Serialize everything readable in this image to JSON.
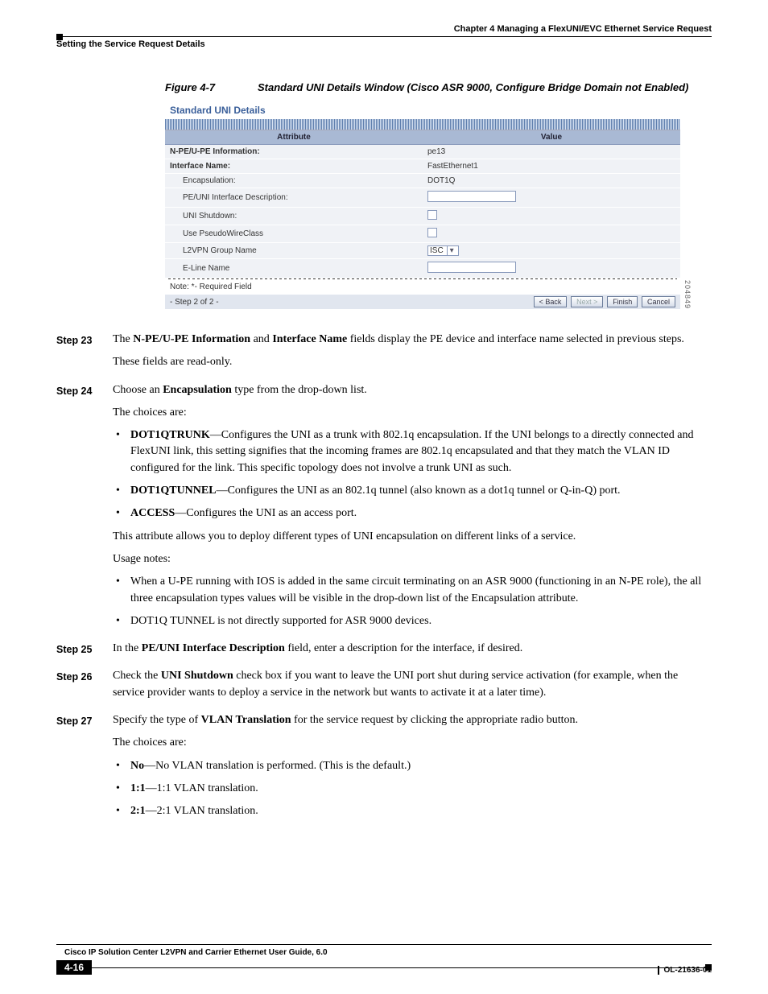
{
  "header": {
    "left": "Setting the Service Request Details",
    "right": "Chapter 4    Managing a FlexUNI/EVC Ethernet Service Request"
  },
  "figure": {
    "number": "Figure 4-7",
    "title": "Standard UNI Details Window (Cisco ASR 9000, Configure Bridge Domain not Enabled)"
  },
  "uni": {
    "title": "Standard UNI Details",
    "th_attr": "Attribute",
    "th_val": "Value",
    "rows": {
      "npe_label": "N-PE/U-PE Information:",
      "npe_value": "pe13",
      "ifname_label": "Interface Name:",
      "ifname_value": "FastEthernet1",
      "encap_label": "Encapsulation:",
      "encap_value": "DOT1Q",
      "desc_label": "PE/UNI Interface Description:",
      "shut_label": "UNI Shutdown:",
      "pwc_label": "Use PseudoWireClass",
      "l2grp_label": "L2VPN Group Name",
      "l2grp_value": "ISC",
      "eline_label": "E-Line Name"
    },
    "note": "Note: *- Required Field",
    "step_indicator": "- Step 2 of 2 -",
    "buttons": {
      "back": "< Back",
      "next": "Next >",
      "finish": "Finish",
      "cancel": "Cancel"
    },
    "sidecode": "204849"
  },
  "steps": {
    "s23": {
      "label": "Step 23",
      "p1a": "The ",
      "p1b": "N-PE/U-PE Information",
      "p1c": " and ",
      "p1d": "Interface Name",
      "p1e": " fields display the PE device and interface name selected in previous steps.",
      "p2": "These fields are read-only."
    },
    "s24": {
      "label": "Step 24",
      "p1a": "Choose an ",
      "p1b": "Encapsulation",
      "p1c": " type from the drop-down list.",
      "p2": "The choices are:",
      "b1a": "DOT1QTRUNK",
      "b1b": "—Configures the UNI as a trunk with 802.1q encapsulation. If the UNI belongs to a directly connected and FlexUNI link, this setting signifies that the incoming frames are 802.1q encapsulated and that they match the VLAN ID configured for the link. This specific topology does not involve a trunk UNI as such.",
      "b2a": "DOT1QTUNNEL",
      "b2b": "—Configures the UNI as an 802.1q tunnel (also known as a dot1q tunnel or Q-in-Q) port.",
      "b3a": "ACCESS",
      "b3b": "—Configures the UNI as an access port.",
      "p3": "This attribute allows you to deploy different types of UNI encapsulation on different links of a service.",
      "p4": "Usage notes:",
      "b4": "When a U-PE running with IOS is added in the same circuit terminating on an ASR 9000 (functioning in an N-PE role), the all three encapsulation types values will be visible in the drop-down list of the Encapsulation attribute.",
      "b5": "DOT1Q TUNNEL is not directly supported for ASR 9000 devices."
    },
    "s25": {
      "label": "Step 25",
      "p1a": "In the ",
      "p1b": "PE/UNI Interface Description",
      "p1c": " field, enter a description for the interface, if desired."
    },
    "s26": {
      "label": "Step 26",
      "p1a": "Check the ",
      "p1b": "UNI Shutdown",
      "p1c": " check box if you want to leave the UNI port shut during service activation (for example, when the service provider wants to deploy a service in the network but wants to activate it at a later time)."
    },
    "s27": {
      "label": "Step 27",
      "p1a": "Specify the type of ",
      "p1b": "VLAN Translation",
      "p1c": " for the service request by clicking the appropriate radio button.",
      "p2": "The choices are:",
      "b1a": "No",
      "b1b": "—No VLAN translation is performed. (This is the default.)",
      "b2a": "1:1",
      "b2b": "—1:1 VLAN translation.",
      "b3a": "2:1",
      "b3b": "—2:1 VLAN translation."
    }
  },
  "footer": {
    "guide": "Cisco IP Solution Center L2VPN and Carrier Ethernet User Guide, 6.0",
    "page": "4-16",
    "ol": "OL-21636-01"
  }
}
